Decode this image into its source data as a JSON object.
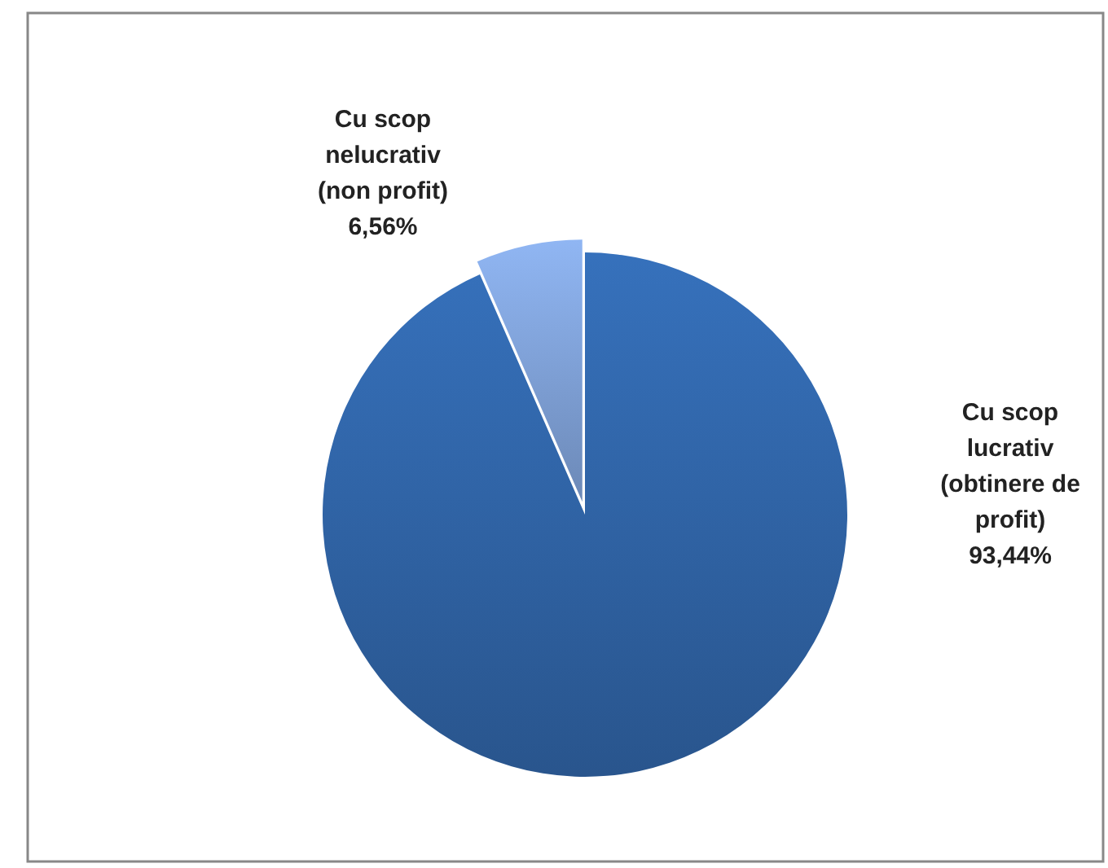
{
  "chart_data": {
    "type": "pie",
    "categories": [
      "Cu scop lucrativ (obtinere de profit)",
      "Cu scop nelucrativ (non profit)"
    ],
    "values": [
      93.44,
      6.56
    ],
    "value_labels": [
      "93,44%",
      "6,56%"
    ],
    "colors": [
      "#2f62a3",
      "#7d9ed3"
    ]
  }
}
